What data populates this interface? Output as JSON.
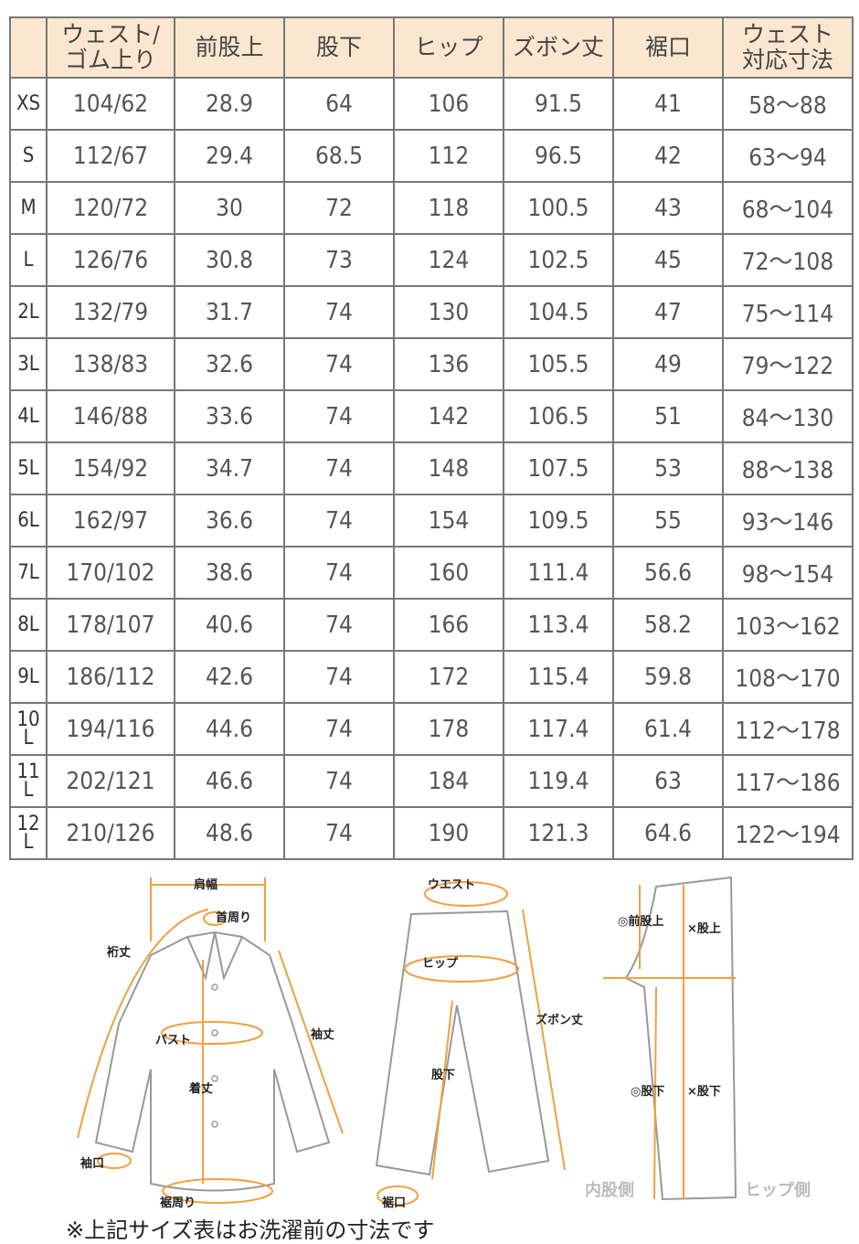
{
  "table": {
    "headers": [
      "",
      "ウェスト/\nゴム上り",
      "前股上",
      "股下",
      "ヒップ",
      "ズボン丈",
      "裾口",
      "ウェスト\n対応寸法"
    ],
    "rows": [
      [
        "XS",
        "104/62",
        "28.9",
        "64",
        "106",
        "91.5",
        "41",
        "58～88"
      ],
      [
        "S",
        "112/67",
        "29.4",
        "68.5",
        "112",
        "96.5",
        "42",
        "63～94"
      ],
      [
        "M",
        "120/72",
        "30",
        "72",
        "118",
        "100.5",
        "43",
        "68～104"
      ],
      [
        "L",
        "126/76",
        "30.8",
        "73",
        "124",
        "102.5",
        "45",
        "72～108"
      ],
      [
        "2L",
        "132/79",
        "31.7",
        "74",
        "130",
        "104.5",
        "47",
        "75～114"
      ],
      [
        "3L",
        "138/83",
        "32.6",
        "74",
        "136",
        "105.5",
        "49",
        "79～122"
      ],
      [
        "4L",
        "146/88",
        "33.6",
        "74",
        "142",
        "106.5",
        "51",
        "84～130"
      ],
      [
        "5L",
        "154/92",
        "34.7",
        "74",
        "148",
        "107.5",
        "53",
        "88～138"
      ],
      [
        "6L",
        "162/97",
        "36.6",
        "74",
        "154",
        "109.5",
        "55",
        "93～146"
      ],
      [
        "7L",
        "170/102",
        "38.6",
        "74",
        "160",
        "111.4",
        "56.6",
        "98～154"
      ],
      [
        "8L",
        "178/107",
        "40.6",
        "74",
        "166",
        "113.4",
        "58.2",
        "103～162"
      ],
      [
        "9L",
        "186/112",
        "42.6",
        "74",
        "172",
        "115.4",
        "59.8",
        "108～170"
      ],
      [
        "10L",
        "194/116",
        "44.6",
        "74",
        "178",
        "117.4",
        "61.4",
        "112～178"
      ],
      [
        "11L",
        "202/121",
        "46.6",
        "74",
        "184",
        "119.4",
        "63",
        "117～186"
      ],
      [
        "12L",
        "210/126",
        "48.6",
        "74",
        "190",
        "121.3",
        "64.6",
        "122～194"
      ]
    ]
  },
  "diagram": {
    "shirt": {
      "shoulder": "肩幅",
      "neck": "首周り",
      "yuki": "裄丈",
      "sleeve": "袖丈",
      "bust": "バスト",
      "length": "着丈",
      "cuff": "袖口",
      "hem": "裾周り"
    },
    "pants": {
      "waist": "ウエスト",
      "hip": "ヒップ",
      "inseam": "股下",
      "length": "ズボン丈",
      "hem": "裾口"
    },
    "side": {
      "rise_ok": "◎前股上",
      "rise_ng": "×股上",
      "inseam_ok": "◎股下",
      "inseam_ng": "×股下",
      "inner": "内股側",
      "hip_side": "ヒップ側"
    }
  },
  "accent_color": "#f0a040",
  "note": "※上記サイズ表はお洗濯前の寸法です"
}
